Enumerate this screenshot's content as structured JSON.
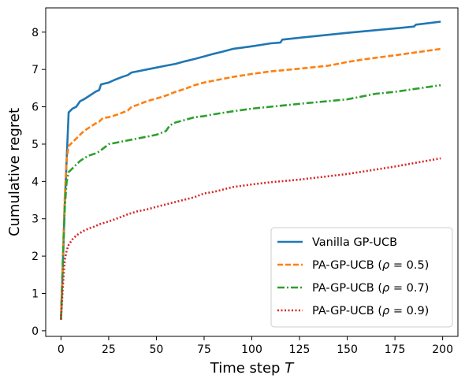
{
  "chart_data": {
    "type": "line",
    "title": "",
    "xlabel": "Time step",
    "xlabel_symbol": "T",
    "ylabel": "Cumulative regret",
    "xlim": [
      -8,
      208
    ],
    "ylim": [
      -0.15,
      8.65
    ],
    "xticks": [
      0,
      25,
      50,
      75,
      100,
      125,
      150,
      175,
      200
    ],
    "yticks": [
      0,
      1,
      2,
      3,
      4,
      5,
      6,
      7,
      8
    ],
    "grid": false,
    "legend_position": "lower right",
    "series": [
      {
        "name": "Vanilla GP-UCB",
        "color": "#1f77b4",
        "dash": "solid",
        "x": [
          0,
          1,
          2,
          3,
          4,
          6,
          8,
          10,
          12,
          15,
          18,
          20,
          21,
          25,
          28,
          32,
          35,
          37,
          40,
          45,
          50,
          55,
          60,
          65,
          70,
          75,
          80,
          85,
          90,
          100,
          110,
          115,
          116,
          125,
          150,
          175,
          185,
          186,
          199
        ],
        "y": [
          0.3,
          1.8,
          3.4,
          4.6,
          5.85,
          5.95,
          6.0,
          6.15,
          6.2,
          6.3,
          6.4,
          6.45,
          6.6,
          6.65,
          6.72,
          6.8,
          6.85,
          6.92,
          6.95,
          7.0,
          7.05,
          7.1,
          7.15,
          7.22,
          7.28,
          7.35,
          7.42,
          7.48,
          7.55,
          7.62,
          7.7,
          7.72,
          7.8,
          7.85,
          7.98,
          8.1,
          8.15,
          8.2,
          8.28
        ]
      },
      {
        "name": "PA-GP-UCB (ρ = 0.5)",
        "legend_prefix": "PA-GP-UCB (",
        "legend_symbol": "ρ",
        "legend_suffix": " = 0.5)",
        "color": "#ff7f0e",
        "dash": "dashed",
        "x": [
          0,
          1,
          2,
          3,
          4,
          6,
          8,
          10,
          12,
          15,
          18,
          20,
          22,
          25,
          30,
          35,
          37,
          40,
          45,
          50,
          55,
          60,
          65,
          70,
          75,
          80,
          90,
          100,
          110,
          125,
          140,
          145,
          150,
          160,
          175,
          199
        ],
        "y": [
          0.3,
          2.0,
          3.6,
          4.6,
          4.95,
          5.05,
          5.15,
          5.25,
          5.35,
          5.45,
          5.55,
          5.6,
          5.7,
          5.72,
          5.8,
          5.9,
          6.0,
          6.05,
          6.15,
          6.22,
          6.3,
          6.4,
          6.48,
          6.58,
          6.65,
          6.7,
          6.8,
          6.88,
          6.95,
          7.02,
          7.1,
          7.15,
          7.2,
          7.28,
          7.38,
          7.55
        ]
      },
      {
        "name": "PA-GP-UCB (ρ = 0.7)",
        "legend_prefix": "PA-GP-UCB (",
        "legend_symbol": "ρ",
        "legend_suffix": " = 0.7)",
        "color": "#2ca02c",
        "dash": "dashdot",
        "x": [
          0,
          1,
          2,
          3,
          4,
          6,
          8,
          10,
          12,
          15,
          18,
          20,
          23,
          25,
          30,
          35,
          40,
          45,
          50,
          55,
          57,
          60,
          65,
          70,
          75,
          80,
          90,
          100,
          125,
          150,
          165,
          175,
          199
        ],
        "y": [
          0.3,
          1.9,
          3.3,
          4.0,
          4.25,
          4.35,
          4.45,
          4.55,
          4.62,
          4.7,
          4.75,
          4.8,
          4.92,
          5.0,
          5.05,
          5.1,
          5.15,
          5.2,
          5.25,
          5.35,
          5.5,
          5.58,
          5.65,
          5.72,
          5.75,
          5.8,
          5.88,
          5.95,
          6.08,
          6.2,
          6.35,
          6.4,
          6.58
        ]
      },
      {
        "name": "PA-GP-UCB (ρ = 0.9)",
        "legend_prefix": "PA-GP-UCB (",
        "legend_symbol": "ρ",
        "legend_suffix": " = 0.9)",
        "color": "#d62728",
        "dash": "dotted",
        "x": [
          0,
          1,
          2,
          3,
          4,
          6,
          8,
          10,
          12,
          15,
          18,
          20,
          25,
          30,
          35,
          40,
          45,
          50,
          60,
          70,
          75,
          80,
          90,
          100,
          110,
          125,
          150,
          175,
          199
        ],
        "y": [
          0.3,
          1.2,
          1.9,
          2.15,
          2.3,
          2.45,
          2.55,
          2.62,
          2.68,
          2.75,
          2.8,
          2.85,
          2.93,
          3.02,
          3.12,
          3.2,
          3.25,
          3.32,
          3.45,
          3.58,
          3.68,
          3.72,
          3.85,
          3.92,
          3.98,
          4.05,
          4.2,
          4.4,
          4.62
        ]
      }
    ]
  }
}
